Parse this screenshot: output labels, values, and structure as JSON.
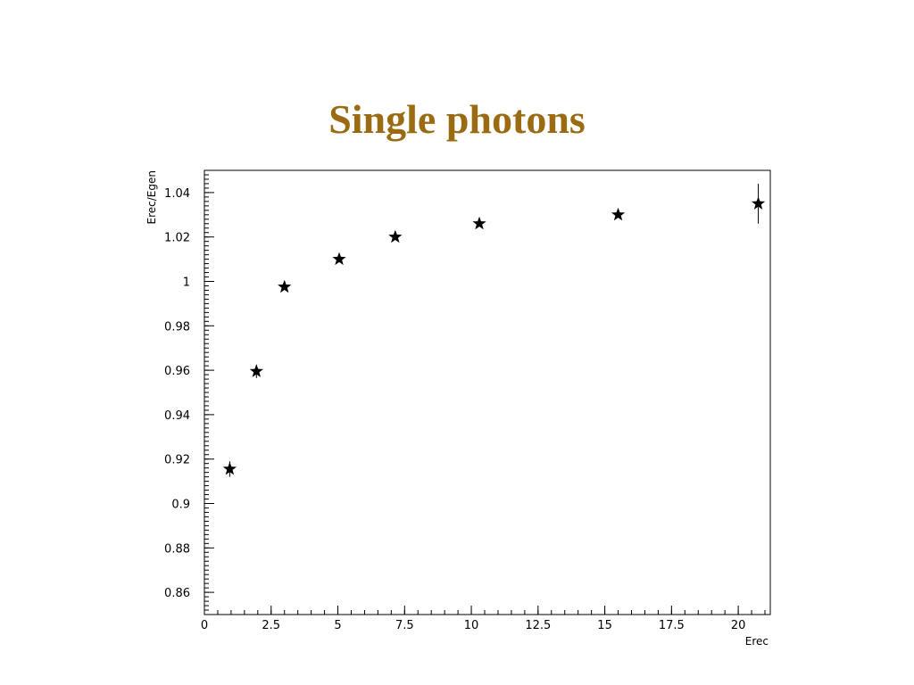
{
  "slide": {
    "title": "Single photons"
  },
  "chart_data": {
    "type": "scatter",
    "title": "",
    "xlabel": "Erec",
    "ylabel": "Erec/Egen",
    "xlim": [
      0,
      21.2
    ],
    "ylim": [
      0.85,
      1.05
    ],
    "x_ticks": [
      0,
      2.5,
      5,
      7.5,
      10,
      12.5,
      15,
      17.5,
      20
    ],
    "x_tick_labels": [
      "0",
      "2.5",
      "5",
      "7.5",
      "10",
      "12.5",
      "15",
      "17.5",
      "20"
    ],
    "y_ticks": [
      0.86,
      0.88,
      0.9,
      0.92,
      0.94,
      0.96,
      0.98,
      1,
      1.02,
      1.04
    ],
    "y_tick_labels": [
      "0.86",
      "0.88",
      "0.9",
      "0.92",
      "0.94",
      "0.96",
      "0.98",
      "1",
      "1.02",
      "1.04"
    ],
    "marker": "star",
    "grid": false,
    "series": [
      {
        "x": [
          0.95,
          1.95,
          3.0,
          5.05,
          7.15,
          10.3,
          15.5,
          20.75
        ],
        "y": [
          0.9155,
          0.9595,
          0.9975,
          1.01,
          1.02,
          1.026,
          1.03,
          1.035
        ],
        "y_err": [
          0.0035,
          0.003,
          0.0005,
          0.0005,
          0.0005,
          0.0005,
          0.0005,
          0.009
        ]
      }
    ]
  }
}
